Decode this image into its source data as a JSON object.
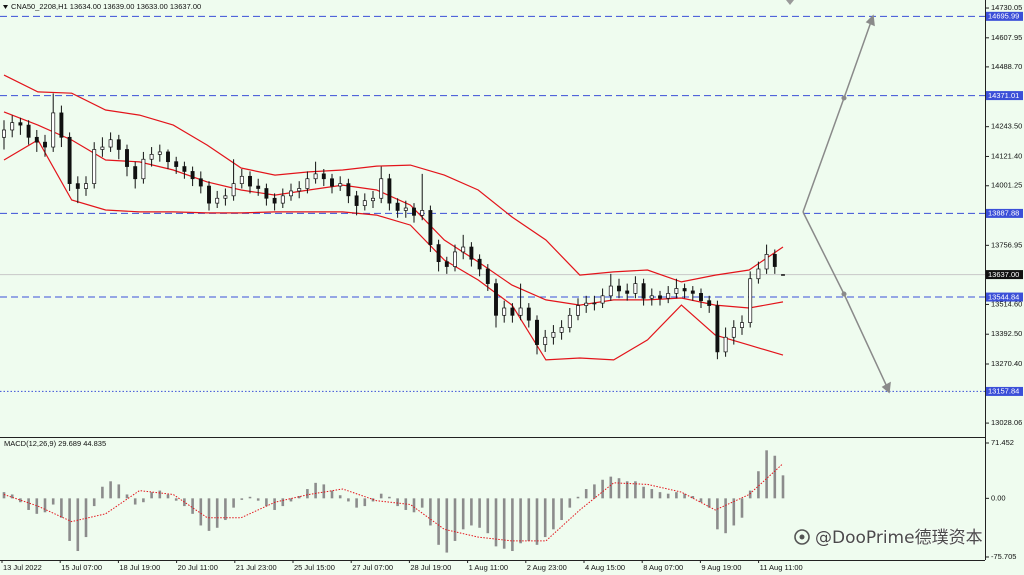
{
  "chart_data": {
    "type": "candlestick",
    "title": "CNA50_2208,H1  13634.00 13639.00 13633.00 13637.00",
    "background": "#effcef",
    "xtick_labels": [
      "13 Jul 2022",
      "15 Jul 07:00",
      "18 Jul 19:00",
      "20 Jul 11:00",
      "21 Jul 23:00",
      "25 Jul 15:00",
      "27 Jul 07:00",
      "28 Jul 19:00",
      "1 Aug 11:00",
      "2 Aug 23:00",
      "4 Aug 15:00",
      "8 Aug 07:00",
      "9 Aug 19:00",
      "11 Aug 11:00"
    ],
    "ylim": [
      12971,
      14763
    ],
    "yticks": [
      14730.05,
      14607.95,
      {
        "value": 14488.7,
        "label": "14488.70"
      },
      {
        "value": 14243.5,
        "label": "14243.50"
      },
      {
        "value": 14121.4,
        "label": "14121.40"
      },
      14001.25,
      13756.95,
      {
        "value": 13514.6,
        "label": "13514.60"
      },
      {
        "value": 13392.5,
        "label": "13392.50"
      },
      {
        "value": 13270.4,
        "label": "13270.40"
      },
      13028.06
    ],
    "levels": [
      14695.99,
      14371.01,
      13887.88,
      13544.84,
      13157.84
    ],
    "level_styles": [
      "dashed",
      "dashed",
      "dashed",
      "dashed",
      "dotted"
    ],
    "level_color": "#3b4fd8",
    "current_price": {
      "value": 13637,
      "label": "13637.00"
    },
    "open": [
      14200,
      14230,
      14260,
      14250,
      14200,
      14180,
      14160,
      14300,
      14200,
      14010,
      13990,
      14010,
      14150,
      14160,
      14190,
      14150,
      14080,
      14030,
      14110,
      14130,
      14140,
      14100,
      14080,
      14060,
      14030,
      14000,
      13930,
      13950,
      13960,
      14010,
      14040,
      14000,
      13990,
      13950,
      13930,
      13960,
      13980,
      13990,
      14030,
      14050,
      14030,
      14000,
      14010,
      13960,
      13920,
      13940,
      13950,
      14030,
      13930,
      13900,
      13910,
      13880,
      13900,
      13760,
      13690,
      13670,
      13730,
      13750,
      13700,
      13660,
      13600,
      13470,
      13500,
      13470,
      13500,
      13450,
      13350,
      13380,
      13400,
      13420,
      13470,
      13510,
      13520,
      13520,
      13550,
      13590,
      13570,
      13560,
      13600,
      13540,
      13550,
      13540,
      13560,
      13580,
      13570,
      13560,
      13530,
      13510,
      13320,
      13380,
      13420,
      13440,
      13620,
      13660,
      13720,
      13634
    ],
    "high": [
      14270,
      14290,
      14280,
      14270,
      14230,
      14210,
      14380,
      14330,
      14220,
      14040,
      14040,
      14180,
      14200,
      14220,
      14210,
      14170,
      14100,
      14140,
      14160,
      14170,
      14150,
      14120,
      14100,
      14080,
      14060,
      14020,
      13980,
      13990,
      14110,
      14070,
      14060,
      14030,
      14010,
      13970,
      13990,
      14010,
      14020,
      14060,
      14100,
      14070,
      14050,
      14040,
      14030,
      13980,
      13970,
      13980,
      14080,
      14050,
      13950,
      13940,
      13930,
      14050,
      13920,
      13780,
      13710,
      13760,
      13800,
      13770,
      13720,
      13680,
      13620,
      13530,
      13520,
      13600,
      13520,
      13470,
      13410,
      13430,
      13450,
      13500,
      13540,
      13550,
      13550,
      13580,
      13640,
      13620,
      13600,
      13630,
      13620,
      13580,
      13570,
      13590,
      13620,
      13600,
      13590,
      13580,
      13550,
      13530,
      13420,
      13450,
      13470,
      13650,
      13690,
      13760,
      13740,
      13639
    ],
    "low": [
      14150,
      14200,
      14210,
      14170,
      14140,
      14120,
      14140,
      14160,
      13980,
      13930,
      13960,
      13990,
      14120,
      14140,
      14110,
      14040,
      13990,
      14010,
      14080,
      14100,
      14070,
      14050,
      14030,
      14000,
      13970,
      13900,
      13910,
      13920,
      13940,
      13990,
      13970,
      13960,
      13920,
      13900,
      13910,
      13940,
      13950,
      13970,
      14010,
      14000,
      13970,
      13980,
      13930,
      13880,
      13900,
      13910,
      13930,
      13900,
      13870,
      13870,
      13850,
      13860,
      13730,
      13650,
      13640,
      13650,
      13700,
      13670,
      13630,
      13570,
      13420,
      13440,
      13440,
      13450,
      13420,
      13310,
      13320,
      13350,
      13370,
      13400,
      13450,
      13480,
      13490,
      13500,
      13530,
      13540,
      13530,
      13540,
      13510,
      13510,
      13510,
      13520,
      13540,
      13540,
      13530,
      13500,
      13480,
      13290,
      13300,
      13350,
      13390,
      13420,
      13600,
      13640,
      13640,
      13633
    ],
    "close": [
      14230,
      14260,
      14250,
      14200,
      14180,
      14160,
      14300,
      14200,
      14010,
      13990,
      14010,
      14150,
      14160,
      14190,
      14150,
      14080,
      14030,
      14110,
      14130,
      14140,
      14100,
      14080,
      14060,
      14030,
      14000,
      13930,
      13950,
      13960,
      14010,
      14040,
      14000,
      13990,
      13950,
      13930,
      13960,
      13980,
      13990,
      14030,
      14050,
      14030,
      14000,
      14010,
      13960,
      13920,
      13940,
      13950,
      14030,
      13930,
      13900,
      13910,
      13880,
      13900,
      13760,
      13690,
      13670,
      13730,
      13750,
      13700,
      13660,
      13600,
      13470,
      13500,
      13470,
      13500,
      13450,
      13350,
      13380,
      13400,
      13420,
      13470,
      13510,
      13520,
      13520,
      13550,
      13590,
      13570,
      13560,
      13600,
      13540,
      13550,
      13540,
      13560,
      13580,
      13570,
      13560,
      13530,
      13510,
      13320,
      13380,
      13420,
      13440,
      13620,
      13660,
      13720,
      13670,
      13637
    ],
    "bands": {
      "color": "#e3141b",
      "upper": [
        14455,
        14386,
        14381,
        14312,
        14291,
        14250,
        14168,
        14074,
        14045,
        14058,
        14066,
        14082,
        14086,
        14045,
        13984,
        13873,
        13779,
        13635,
        13648,
        13656,
        13607,
        13635,
        13656,
        13750
      ],
      "middle": [
        14304,
        14250,
        14189,
        14107,
        14099,
        14066,
        14017,
        13984,
        13963,
        13984,
        14004,
        13984,
        13922,
        13779,
        13689,
        13594,
        13533,
        13512,
        13533,
        13533,
        13541,
        13512,
        13500,
        13525
      ],
      "lower": [
        14107,
        14189,
        13943,
        13902,
        13894,
        13894,
        13890,
        13890,
        13894,
        13894,
        13894,
        13881,
        13840,
        13697,
        13615,
        13512,
        13287,
        13295,
        13287,
        13369,
        13512,
        13389,
        13348,
        13307
      ]
    },
    "macd": {
      "title": "MACD(12,26,9) 29.689 44.835",
      "ylim": [
        -79.6,
        77.9
      ],
      "yticks": [
        71.452,
        {
          "value": 0,
          "label": "0.00"
        },
        -75.705
      ],
      "hist_color": "#8c8c8c",
      "signal_color": "#e3141b",
      "histogram": [
        8,
        5,
        -5,
        -15,
        -20,
        -18,
        -8,
        -25,
        -55,
        -68,
        -50,
        -10,
        15,
        22,
        18,
        5,
        -8,
        -5,
        8,
        10,
        5,
        -3,
        -10,
        -20,
        -35,
        -42,
        -38,
        -28,
        -12,
        -2,
        2,
        -3,
        -10,
        -15,
        -10,
        -4,
        3,
        12,
        20,
        18,
        10,
        4,
        -4,
        -12,
        -10,
        -4,
        6,
        2,
        -10,
        -15,
        -18,
        -12,
        -35,
        -60,
        -70,
        -55,
        -40,
        -35,
        -38,
        -45,
        -62,
        -65,
        -68,
        -58,
        -55,
        -60,
        -50,
        -40,
        -28,
        -12,
        2,
        12,
        18,
        24,
        28,
        26,
        22,
        22,
        15,
        12,
        8,
        6,
        8,
        6,
        3,
        -5,
        -12,
        -40,
        -45,
        -35,
        -25,
        10,
        35,
        62,
        55,
        29.689
      ],
      "signal": [
        5,
        -10,
        -30,
        -20,
        10,
        5,
        -25,
        -25,
        -5,
        5,
        12,
        -3,
        -8,
        -40,
        -50,
        -55,
        -55,
        -15,
        20,
        18,
        8,
        -15,
        5,
        44.835
      ]
    }
  },
  "watermark": "@DooPrime德璞资本"
}
